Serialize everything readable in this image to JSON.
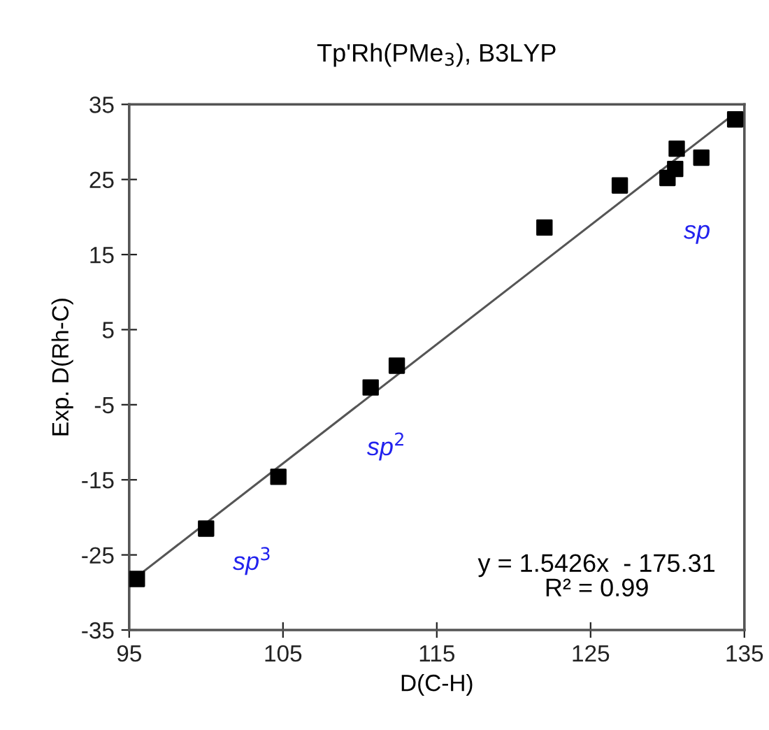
{
  "chart_data": {
    "type": "scatter",
    "title": "Tp'Rh(PMe$_{3}$), B3LYP",
    "xlabel": "D(C-H)",
    "ylabel": "Exp. D(Rh-C)",
    "series": [
      {
        "color": "#000000",
        "marker": "square",
        "x": [
          95.5,
          100.0,
          104.7,
          110.7,
          112.4,
          122.0,
          126.9,
          130.0,
          130.5,
          130.6,
          132.2,
          134.4
        ],
        "values": [
          -28.2,
          -21.5,
          -14.6,
          -2.7,
          0.2,
          18.6,
          24.2,
          25.2,
          26.4,
          29.1,
          27.9,
          33.0
        ]
      },
      {
        "type": "line",
        "color": "#555555",
        "marker": "none",
        "x": [
          96.0,
          134.0
        ],
        "values": [
          -27.1,
          33.2
        ]
      }
    ],
    "xlim": [
      95,
      135
    ],
    "ylim": [
      -35,
      35
    ],
    "xticks": [
      95,
      105,
      115,
      125,
      135
    ],
    "yticks": [
      -35,
      -25,
      -15,
      -5,
      5,
      15,
      25,
      35
    ],
    "grid": false,
    "legend": false,
    "annotations": [
      "sp",
      "sp$^{2}$",
      "sp$^{3}$",
      "y = 1.5426x  - 175.31\nR² = 0.99"
    ]
  }
}
